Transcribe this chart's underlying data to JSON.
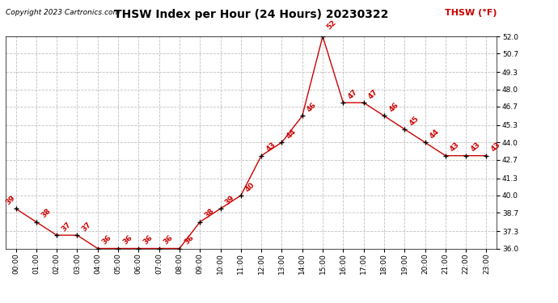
{
  "title": "THSW Index per Hour (24 Hours) 20230322",
  "copyright": "Copyright 2023 Cartronics.com",
  "legend_label": "THSW (°F)",
  "hours": [
    0,
    1,
    2,
    3,
    4,
    5,
    6,
    7,
    8,
    9,
    10,
    11,
    12,
    13,
    14,
    15,
    16,
    17,
    18,
    19,
    20,
    21,
    22,
    23
  ],
  "values": [
    39,
    38,
    37,
    37,
    36,
    36,
    36,
    36,
    36,
    38,
    39,
    40,
    43,
    44,
    46,
    52,
    47,
    47,
    46,
    45,
    44,
    43,
    43,
    43
  ],
  "x_labels": [
    "00:00",
    "01:00",
    "02:00",
    "03:00",
    "04:00",
    "05:00",
    "06:00",
    "07:00",
    "08:00",
    "09:00",
    "10:00",
    "11:00",
    "12:00",
    "13:00",
    "14:00",
    "15:00",
    "16:00",
    "17:00",
    "18:00",
    "19:00",
    "20:00",
    "21:00",
    "22:00",
    "23:00"
  ],
  "ylim": [
    36.0,
    52.0
  ],
  "y_ticks": [
    36.0,
    37.3,
    38.7,
    40.0,
    41.3,
    42.7,
    44.0,
    45.3,
    46.7,
    48.0,
    49.3,
    50.7,
    52.0
  ],
  "line_color": "#cc0000",
  "marker_color": "#000000",
  "bg_color": "#ffffff",
  "grid_color": "#c0c0c0",
  "title_color": "#000000",
  "copyright_color": "#000000",
  "legend_color": "#cc0000",
  "data_label_color": "#cc0000",
  "title_fontsize": 10,
  "copyright_fontsize": 6.5,
  "legend_fontsize": 8,
  "data_label_fontsize": 6.5,
  "tick_fontsize": 6.5
}
